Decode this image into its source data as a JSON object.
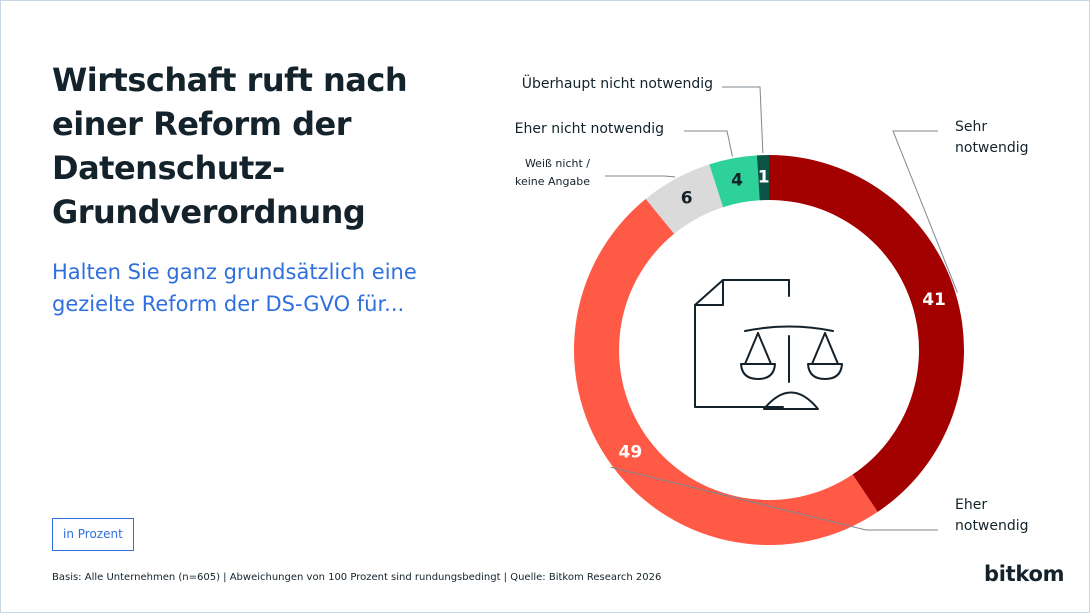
{
  "title": "Wirtschaft ruft nach einer Reform der Datenschutz-Grundverordnung",
  "subtitle": "Halten Sie ganz grundsätzlich eine gezielte Reform der DS-GVO für...",
  "unit_label": "in Prozent",
  "footnote": "Basis: Alle Unternehmen (n=605) | Abweichungen von 100 Prozent sind rundungsbedingt | Quelle: Bitkom Research 2026",
  "brand": "bitkom",
  "chart_data": {
    "type": "pie",
    "donut": true,
    "unit": "in Prozent",
    "categories": [
      "Sehr notwendig",
      "Eher notwendig",
      "Weiß nicht / keine Angabe",
      "Eher nicht notwendig",
      "Überhaupt nicht notwendig"
    ],
    "values": [
      41,
      49,
      6,
      4,
      1
    ],
    "colors": [
      "#a30000",
      "#ff5a45",
      "#dadada",
      "#2fd19b",
      "#0b5347"
    ],
    "label_colors": [
      "#ffffff",
      "#ffffff",
      "#13222b",
      "#13222b",
      "#ffffff"
    ],
    "center_icon": "document-scales-icon"
  }
}
